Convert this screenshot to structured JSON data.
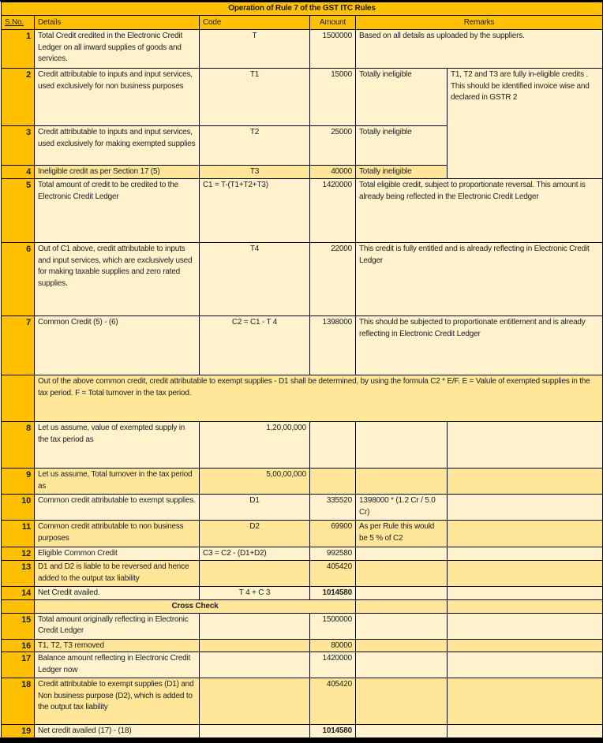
{
  "title": "Operation of Rule 7 of the GST ITC Rules",
  "headers": {
    "sno": "S.No.",
    "details": "Details",
    "code": "Code",
    "amount": "Amount",
    "remarks": "Remarks"
  },
  "shared_remark_t1_t3": "T1, T2 and T3  are  fully in-eligible credits . This should be identified invoice wise and declared in GSTR 2",
  "note": "Out of the above common credit, credit attributable to exempt supplies - D1 shall be determined, by using the formula C2  * E/F. E = Valule of exempted supplies in the tax period.  F = Total turnover  in the tax period.",
  "cross_check_label": "Cross Check",
  "rows": [
    {
      "sno": "1",
      "details": "Total Credit credited in the Electronic Credit Ledger on all inward supplies of goods and services.",
      "code": "T",
      "amount": "1500000",
      "remark": "Based on all details as uploaded by the suppliers."
    },
    {
      "sno": "2",
      "details": "Credit attributable to inputs and input services, used exclusively for non business purposes",
      "code": "T1",
      "amount": "15000",
      "remark": "Totally ineligible"
    },
    {
      "sno": "3",
      "details": "Credit attributable to inputs and input services, used exclusively for making exempted supplies",
      "code": "T2",
      "amount": "25000",
      "remark": "Totally ineligible"
    },
    {
      "sno": "4",
      "details": "Ineligible credit as per Section 17 (5)",
      "code": "T3",
      "amount": "40000",
      "remark": "Totally ineligible"
    },
    {
      "sno": "5",
      "details": "Total amount of credit to be credited to the Electronic Credit Ledger",
      "code": "C1 = T-(T1+T2+T3)",
      "amount": "1420000",
      "remark": "Total eligible credit, subject to proportionate  reversal. This amount is already being reflected in the Electronic Credit Ledger"
    },
    {
      "sno": "6",
      "details": "Out of C1 above, credit attributable to inputs and input services, which are exclusively used for making taxable supplies and zero rated supplies.",
      "code": "T4",
      "amount": "22000",
      "remark": "This credit is fully entitled and is already reflecting in Electronic Credit Ledger"
    },
    {
      "sno": "7",
      "details": "Common Credit (5) - (6)",
      "code": "C2 = C1 - T 4",
      "amount": "1398000",
      "remark": "This should be subjected to proportionate entitlement and is already reflecting in Electronic Credit Ledger"
    },
    {
      "sno": "8",
      "details": "Let us assume, value of exempted supply in the tax period as",
      "code": "1,20,00,000",
      "amount": "",
      "remark": ""
    },
    {
      "sno": "9",
      "details": "Let us assume, Total turnover  in the tax period as",
      "code": "5,00,00,000",
      "amount": "",
      "remark": ""
    },
    {
      "sno": "10",
      "details": "Common credit attributable to exempt supplies.",
      "code": "D1",
      "amount": "335520",
      "remark": "1398000 * (1.2 Cr / 5.0 Cr)"
    },
    {
      "sno": "11",
      "details": "Common credit attributable to non business purposes",
      "code": "D2",
      "amount": "69900",
      "remark": "As per Rule this would be 5 % of C2"
    },
    {
      "sno": "12",
      "details": "Eligible Common Credit",
      "code": "C3 = C2 - (D1+D2)",
      "amount": "992580",
      "remark": ""
    },
    {
      "sno": "13",
      "details": "D1 and D2 is liable to be reversed and hence added to the output tax liability",
      "code": "",
      "amount": "405420",
      "remark": ""
    },
    {
      "sno": "14",
      "details": "Net Credit availed.",
      "code": "T 4 + C 3",
      "amount": "1014580",
      "remark": ""
    },
    {
      "sno": "15",
      "details": "Total amount originally reflecting in Electronic Credit Ledger",
      "code": "",
      "amount": "1500000",
      "remark": ""
    },
    {
      "sno": "16",
      "details": "T1, T2, T3 removed",
      "code": "",
      "amount": "80000",
      "remark": ""
    },
    {
      "sno": "17",
      "details": "Balance amount reflecting in Electronic Credit Ledger now",
      "code": "",
      "amount": "1420000",
      "remark": ""
    },
    {
      "sno": "18",
      "details": "Credit attributable to exempt supplies (D1) and Non business purpose  (D2), which is added to the output tax liability",
      "code": "",
      "amount": "405420",
      "remark": ""
    },
    {
      "sno": "19",
      "details": "Net credit availed (17) - (18)",
      "code": "",
      "amount": "1014580",
      "remark": ""
    }
  ],
  "colors": {
    "header_orange": "#FFC000",
    "row_light": "#FFF2CC",
    "row_dark": "#FFE699"
  }
}
